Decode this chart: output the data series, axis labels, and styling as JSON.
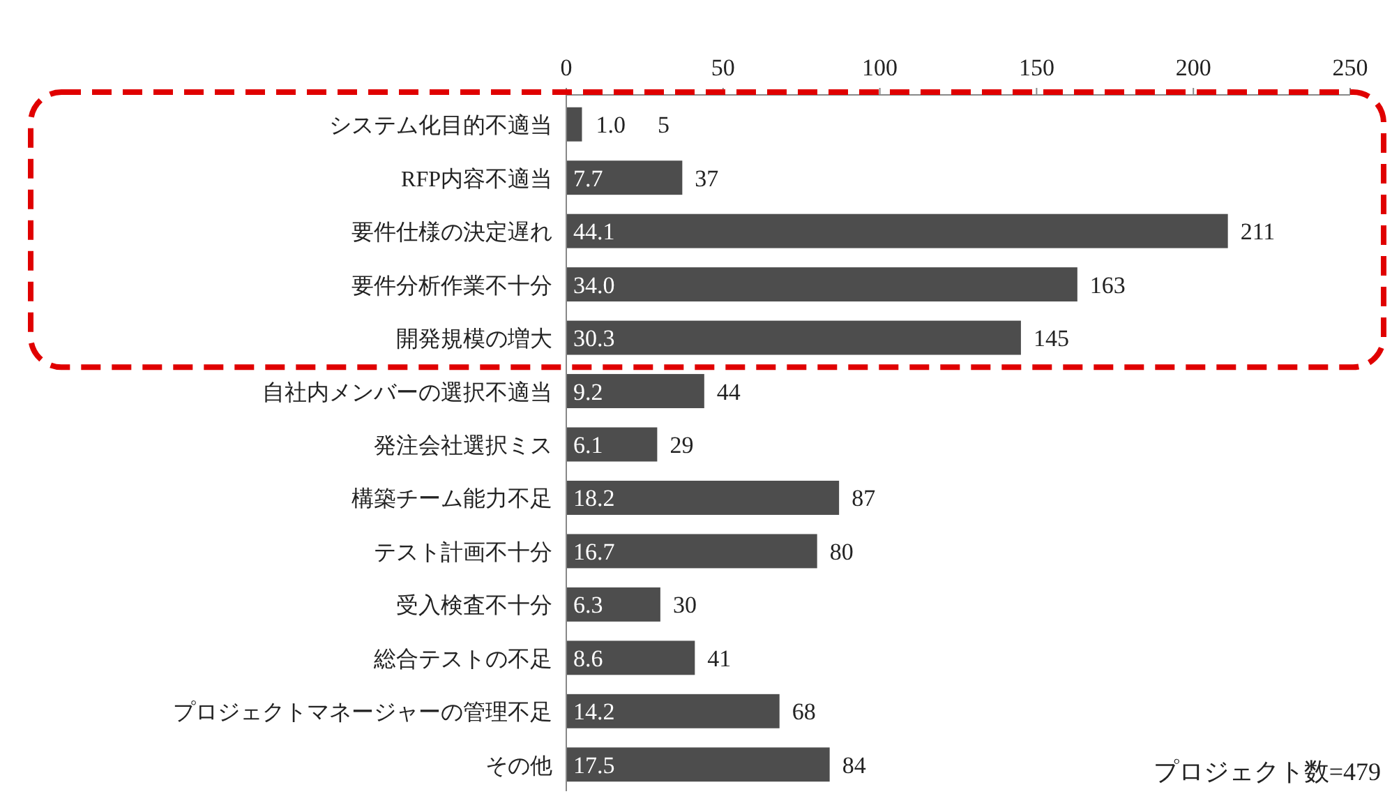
{
  "chart_data": {
    "type": "bar",
    "orientation": "horizontal",
    "categories": [
      "システム化目的不適当",
      "RFP内容不適当",
      "要件仕様の決定遅れ",
      "要件分析作業不十分",
      "開発規模の増大",
      "自社内メンバーの選択不適当",
      "発注会社選択ミス",
      "構築チーム能力不足",
      "テスト計画不十分",
      "受入検査不十分",
      "総合テストの不足",
      "プロジェクトマネージャーの管理不足",
      "その他"
    ],
    "values": [
      5,
      37,
      211,
      163,
      145,
      44,
      29,
      87,
      80,
      30,
      41,
      68,
      84
    ],
    "color": "#4d4d4d",
    "xlim": [
      0,
      250
    ],
    "xticks": [
      0,
      50,
      100,
      150,
      200,
      250
    ],
    "data_labels": true,
    "annotations": [
      "1.0",
      "7.7",
      "44.1",
      "34.0",
      "30.3",
      "9.2",
      "6.1",
      "18.2",
      "16.7",
      "6.3",
      "8.6",
      "14.2",
      "17.5",
      "プロジェクト数=479"
    ]
  }
}
